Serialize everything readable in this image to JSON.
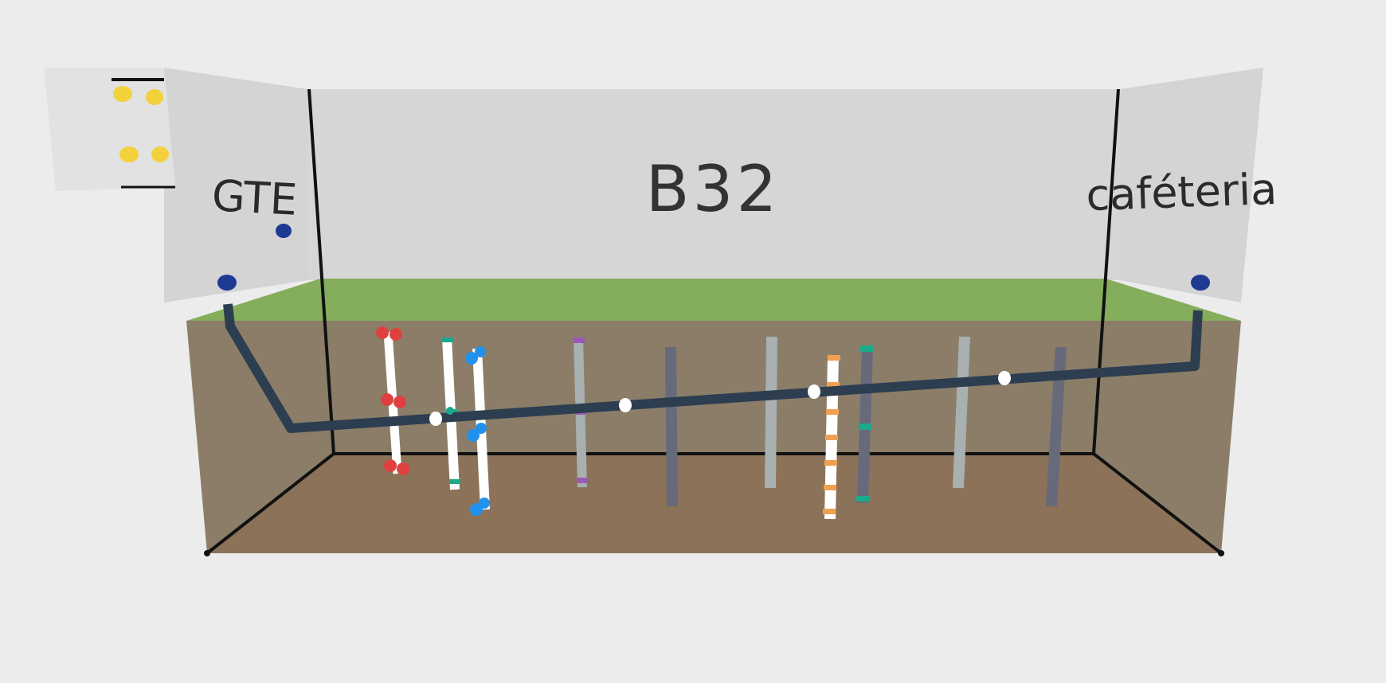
{
  "labels": {
    "room": "B32",
    "left_room": "GTE",
    "right_room": "caféteria"
  },
  "colors": {
    "background": "#ececec",
    "walls": "#d6d6d6",
    "grass": "#84ad5c",
    "soil": "#8b7d68",
    "floor": "#8b7259",
    "pipe": "#2c3e50",
    "red_marker": "#e04040",
    "teal_marker": "#1aaa8a",
    "blue_marker": "#2291ee",
    "purple_marker": "#9b59b6",
    "orange_marker": "#f0a050",
    "yellow_marker": "#f2d13c",
    "navy_marker": "#1f3a93"
  },
  "icons": {
    "sensor_point": "dot-icon",
    "window": "window-icon"
  }
}
